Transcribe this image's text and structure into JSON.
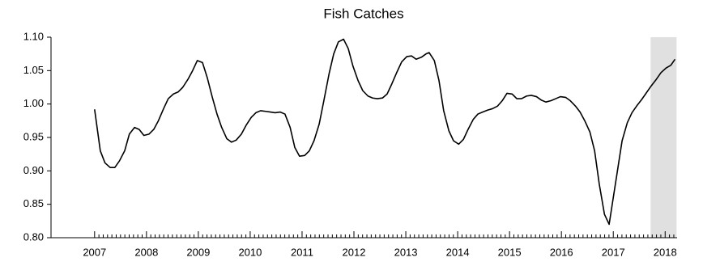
{
  "chart_data": {
    "type": "line",
    "title": "Fish Catches",
    "x": [
      2007.0,
      2007.11,
      2007.2,
      2007.3,
      2007.39,
      2007.48,
      2007.58,
      2007.67,
      2007.77,
      2007.86,
      2007.95,
      2008.05,
      2008.14,
      2008.23,
      2008.33,
      2008.42,
      2008.52,
      2008.61,
      2008.7,
      2008.8,
      2008.89,
      2008.98,
      2009.08,
      2009.17,
      2009.27,
      2009.36,
      2009.45,
      2009.55,
      2009.64,
      2009.73,
      2009.83,
      2009.92,
      2010.02,
      2010.11,
      2010.2,
      2010.3,
      2010.39,
      2010.48,
      2010.58,
      2010.67,
      2010.77,
      2010.86,
      2010.95,
      2011.05,
      2011.14,
      2011.23,
      2011.33,
      2011.42,
      2011.52,
      2011.61,
      2011.7,
      2011.8,
      2011.89,
      2011.98,
      2012.08,
      2012.17,
      2012.27,
      2012.36,
      2012.45,
      2012.55,
      2012.64,
      2012.73,
      2012.83,
      2012.92,
      2013.02,
      2013.11,
      2013.2,
      2013.3,
      2013.39,
      2013.45,
      2013.55,
      2013.64,
      2013.73,
      2013.83,
      2013.92,
      2014.02,
      2014.11,
      2014.2,
      2014.3,
      2014.39,
      2014.48,
      2014.58,
      2014.67,
      2014.77,
      2014.86,
      2014.95,
      2015.05,
      2015.14,
      2015.23,
      2015.33,
      2015.42,
      2015.52,
      2015.61,
      2015.7,
      2015.8,
      2015.89,
      2015.98,
      2016.08,
      2016.17,
      2016.27,
      2016.36,
      2016.45,
      2016.55,
      2016.64,
      2016.73,
      2016.83,
      2016.92,
      2016.98,
      2017.08,
      2017.17,
      2017.27,
      2017.36,
      2017.45,
      2017.55,
      2017.64,
      2017.73,
      2017.83,
      2017.92,
      2018.02,
      2018.11,
      2018.19
    ],
    "series": [
      {
        "color": "#000000",
        "values": [
          0.992,
          0.93,
          0.912,
          0.905,
          0.905,
          0.915,
          0.93,
          0.955,
          0.965,
          0.962,
          0.953,
          0.955,
          0.962,
          0.975,
          0.993,
          1.008,
          1.015,
          1.018,
          1.025,
          1.037,
          1.05,
          1.065,
          1.062,
          1.04,
          1.01,
          0.985,
          0.965,
          0.948,
          0.943,
          0.946,
          0.955,
          0.968,
          0.98,
          0.987,
          0.99,
          0.989,
          0.988,
          0.987,
          0.988,
          0.985,
          0.965,
          0.935,
          0.922,
          0.923,
          0.93,
          0.945,
          0.97,
          1.005,
          1.045,
          1.075,
          1.093,
          1.097,
          1.083,
          1.057,
          1.035,
          1.02,
          1.012,
          1.009,
          1.008,
          1.009,
          1.015,
          1.03,
          1.048,
          1.063,
          1.071,
          1.072,
          1.067,
          1.07,
          1.075,
          1.077,
          1.065,
          1.035,
          0.99,
          0.96,
          0.945,
          0.94,
          0.947,
          0.962,
          0.977,
          0.985,
          0.988,
          0.991,
          0.993,
          0.997,
          1.005,
          1.016,
          1.015,
          1.008,
          1.008,
          1.012,
          1.013,
          1.011,
          1.006,
          1.003,
          1.005,
          1.008,
          1.011,
          1.01,
          1.005,
          0.997,
          0.988,
          0.975,
          0.958,
          0.93,
          0.88,
          0.835,
          0.82,
          0.85,
          0.9,
          0.945,
          0.972,
          0.987,
          0.997,
          1.007,
          1.017,
          1.027,
          1.037,
          1.047,
          1.054,
          1.058,
          1.067
        ]
      }
    ],
    "xlim": [
      2006.16,
      2018.23
    ],
    "xticks": [
      2007,
      2008,
      2009,
      2010,
      2011,
      2012,
      2013,
      2014,
      2015,
      2016,
      2017,
      2018
    ],
    "ylim": [
      0.8,
      1.1
    ],
    "yticks": [
      {
        "value": 0.8,
        "label": "0.80"
      },
      {
        "value": 0.85,
        "label": "0.85"
      },
      {
        "value": 0.9,
        "label": "0.90"
      },
      {
        "value": 0.95,
        "label": "0.95"
      },
      {
        "value": 1.0,
        "label": "1.00"
      },
      {
        "value": 1.05,
        "label": "1.05"
      },
      {
        "value": 1.1,
        "label": "1.10"
      }
    ],
    "shaded_region": [
      2017.72,
      2018.22
    ],
    "shade_color": "#e0e0e0"
  }
}
